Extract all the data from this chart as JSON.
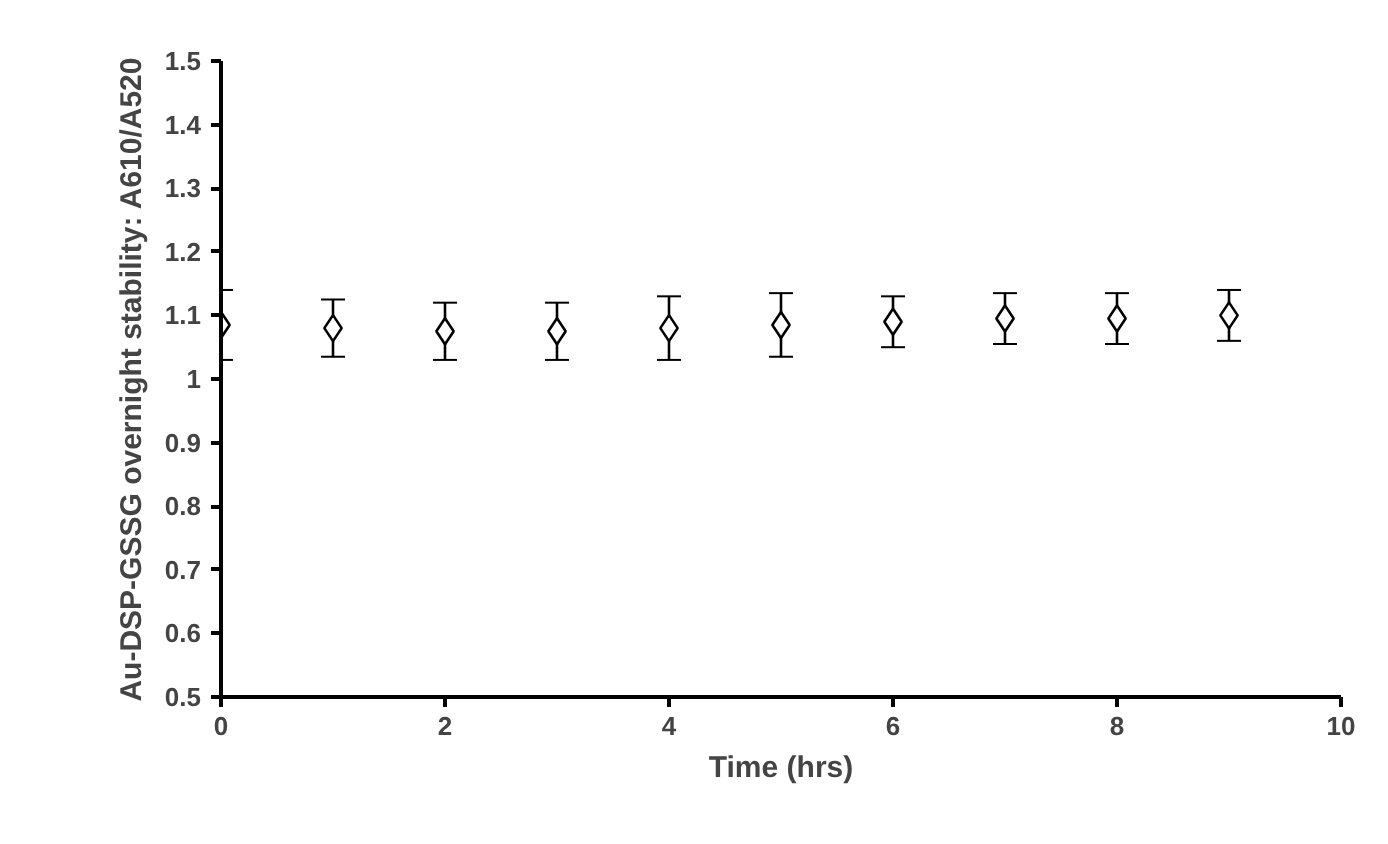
{
  "chart_data": {
    "type": "scatter",
    "xlabel": "Time (hrs)",
    "ylabel": "Au-DSP-GSSG overnight stability: A610/A520",
    "x": [
      0,
      1,
      2,
      3,
      4,
      5,
      6,
      7,
      8,
      9
    ],
    "values": [
      1.085,
      1.08,
      1.075,
      1.075,
      1.08,
      1.085,
      1.09,
      1.095,
      1.095,
      1.1
    ],
    "errors": [
      0.055,
      0.045,
      0.045,
      0.045,
      0.05,
      0.05,
      0.04,
      0.04,
      0.04,
      0.04
    ],
    "color": "#000000",
    "marker": "diamond",
    "xlim": [
      0,
      10
    ],
    "xticks": [
      0,
      2,
      4,
      6,
      8,
      10
    ],
    "ylim": [
      0.5,
      1.5
    ],
    "yticks": [
      0.5,
      0.6,
      0.7,
      0.8,
      0.9,
      1,
      1.1,
      1.2,
      1.3,
      1.4,
      1.5
    ],
    "grid": false
  }
}
